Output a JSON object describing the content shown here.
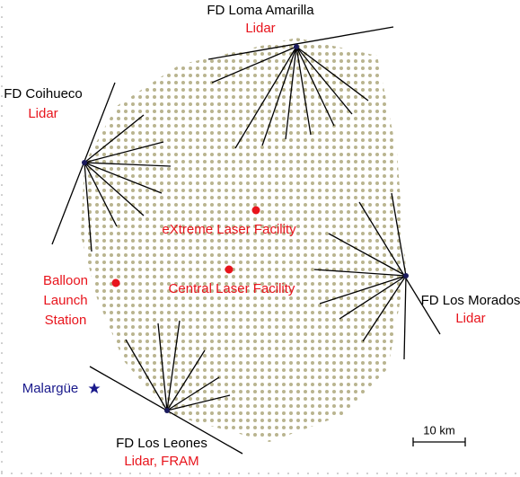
{
  "stations": [
    {
      "name": "FD Loma Amarilla",
      "instruments": "Lidar"
    },
    {
      "name": "FD Coihueco",
      "instruments": "Lidar"
    },
    {
      "name": "FD Los Morados",
      "instruments": "Lidar"
    },
    {
      "name": "FD Los Leones",
      "instruments": "Lidar, FRAM"
    }
  ],
  "facilities": [
    {
      "label": [
        "eXtreme Laser Facility"
      ]
    },
    {
      "label": [
        "Central Laser Facility"
      ]
    },
    {
      "label": [
        "Balloon",
        "Launch",
        "Station"
      ]
    }
  ],
  "town": "Malargüe",
  "scale": "10 km"
}
